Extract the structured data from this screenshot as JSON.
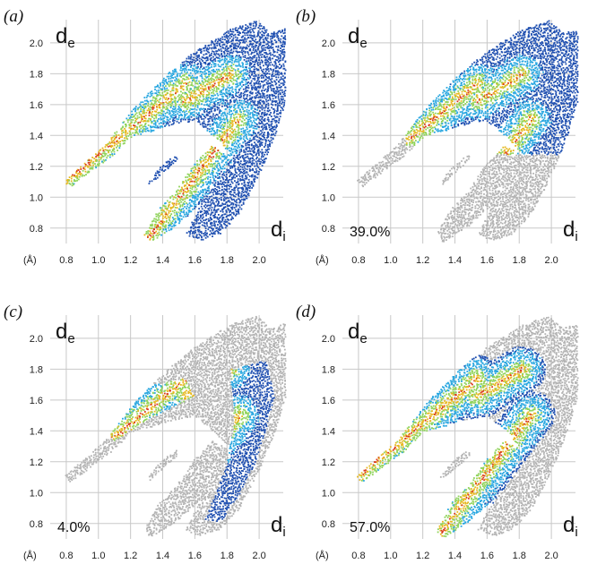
{
  "chart_data": [
    {
      "type": "heatmap",
      "panel_label": "(a)",
      "xlabel": "di",
      "ylabel": "de",
      "unit_label": "(Å)",
      "xticks": [
        "0.8",
        "1.0",
        "1.2",
        "1.4",
        "1.6",
        "1.8",
        "2.0"
      ],
      "yticks": [
        "0.8",
        "1.0",
        "1.2",
        "1.4",
        "1.6",
        "1.8",
        "2.0"
      ],
      "xlim": [
        0.7,
        2.15
      ],
      "ylim": [
        0.7,
        2.15
      ],
      "percentage": "",
      "grid": true,
      "highlight": "full"
    },
    {
      "type": "heatmap",
      "panel_label": "(b)",
      "xlabel": "di",
      "ylabel": "de",
      "unit_label": "(Å)",
      "xticks": [
        "0.8",
        "1.0",
        "1.2",
        "1.4",
        "1.6",
        "1.8",
        "2.0"
      ],
      "yticks": [
        "0.8",
        "1.0",
        "1.2",
        "1.4",
        "1.6",
        "1.8",
        "2.0"
      ],
      "xlim": [
        0.7,
        2.15
      ],
      "ylim": [
        0.7,
        2.15
      ],
      "percentage": "39.0%",
      "grid": true,
      "highlight": "upper-spike"
    },
    {
      "type": "heatmap",
      "panel_label": "(c)",
      "xlabel": "di",
      "ylabel": "de",
      "unit_label": "(Å)",
      "xticks": [
        "0.8",
        "1.0",
        "1.2",
        "1.4",
        "1.6",
        "1.8",
        "2.0"
      ],
      "yticks": [
        "0.8",
        "1.0",
        "1.2",
        "1.4",
        "1.6",
        "1.8",
        "2.0"
      ],
      "xlim": [
        0.7,
        2.15
      ],
      "ylim": [
        0.7,
        2.15
      ],
      "percentage": "4.0%",
      "grid": true,
      "highlight": "wings"
    },
    {
      "type": "heatmap",
      "panel_label": "(d)",
      "xlabel": "di",
      "ylabel": "de",
      "unit_label": "(Å)",
      "xticks": [
        "0.8",
        "1.0",
        "1.2",
        "1.4",
        "1.6",
        "1.8",
        "2.0"
      ],
      "yticks": [
        "0.8",
        "1.0",
        "1.2",
        "1.4",
        "1.6",
        "1.8",
        "2.0"
      ],
      "xlim": [
        0.7,
        2.15
      ],
      "ylim": [
        0.7,
        2.15
      ],
      "percentage": "57.0%",
      "grid": true,
      "highlight": "spikes"
    }
  ],
  "colors": {
    "background_points": "#b3b3b3",
    "low_density": "#1f4fb0",
    "mid_low_density": "#29a7e0",
    "mid_density": "#8fd35a",
    "high_density": "#e6b820",
    "max_density": "#d83a1a",
    "grid": "#c8c8c8"
  }
}
